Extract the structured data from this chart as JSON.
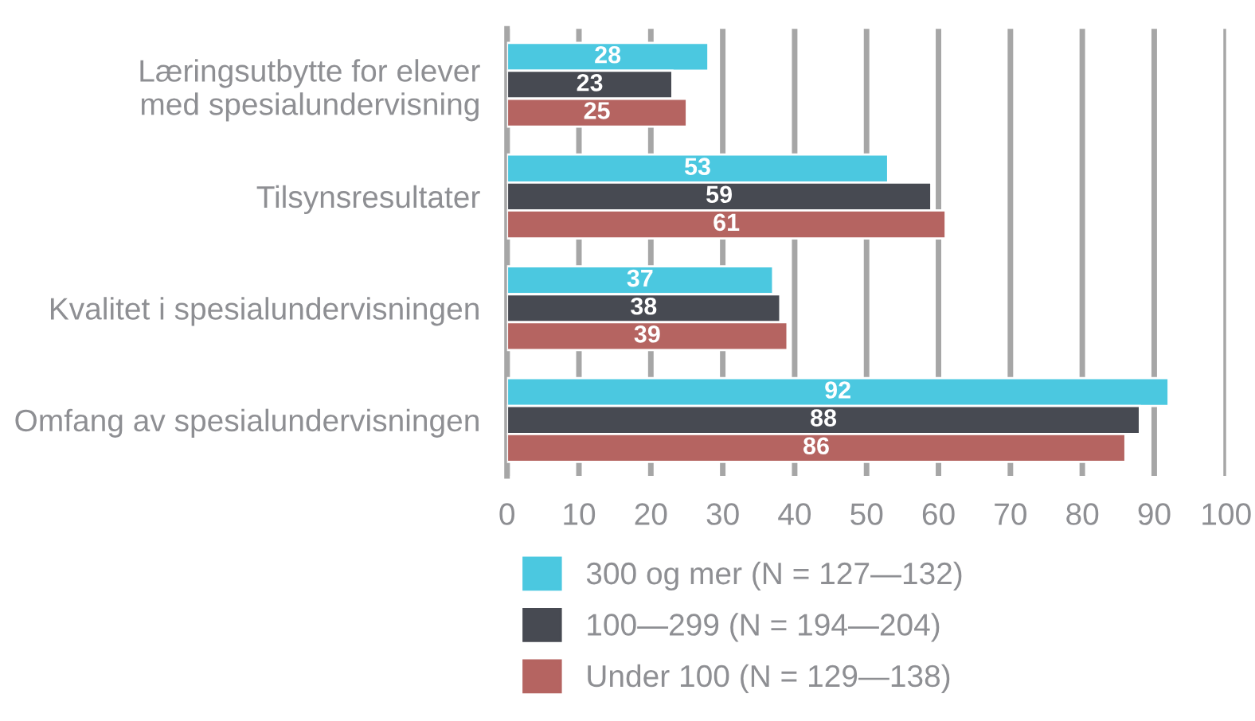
{
  "chart_data": {
    "type": "bar",
    "orientation": "horizontal",
    "categories": [
      "Læringsutbytte for elever\nmed spesialundervisning",
      "Tilsynsresultater",
      "Kvalitet i spesialundervisningen",
      "Omfang av spesialundervisningen"
    ],
    "series": [
      {
        "name": "300 og mer (N = 127—132)",
        "color": "#4bc8e0",
        "values": [
          28,
          53,
          37,
          92
        ]
      },
      {
        "name": "100—299 (N = 194—204)",
        "color": "#474a52",
        "values": [
          23,
          59,
          38,
          88
        ]
      },
      {
        "name": "Under 100 (N = 129—138)",
        "color": "#b56461",
        "values": [
          25,
          61,
          39,
          86
        ]
      }
    ],
    "xlim": [
      0,
      100
    ],
    "xticks": [
      0,
      10,
      20,
      30,
      40,
      50,
      60,
      70,
      80,
      90,
      100
    ],
    "grid": "x",
    "legend": "bottom",
    "data_labels": true
  }
}
